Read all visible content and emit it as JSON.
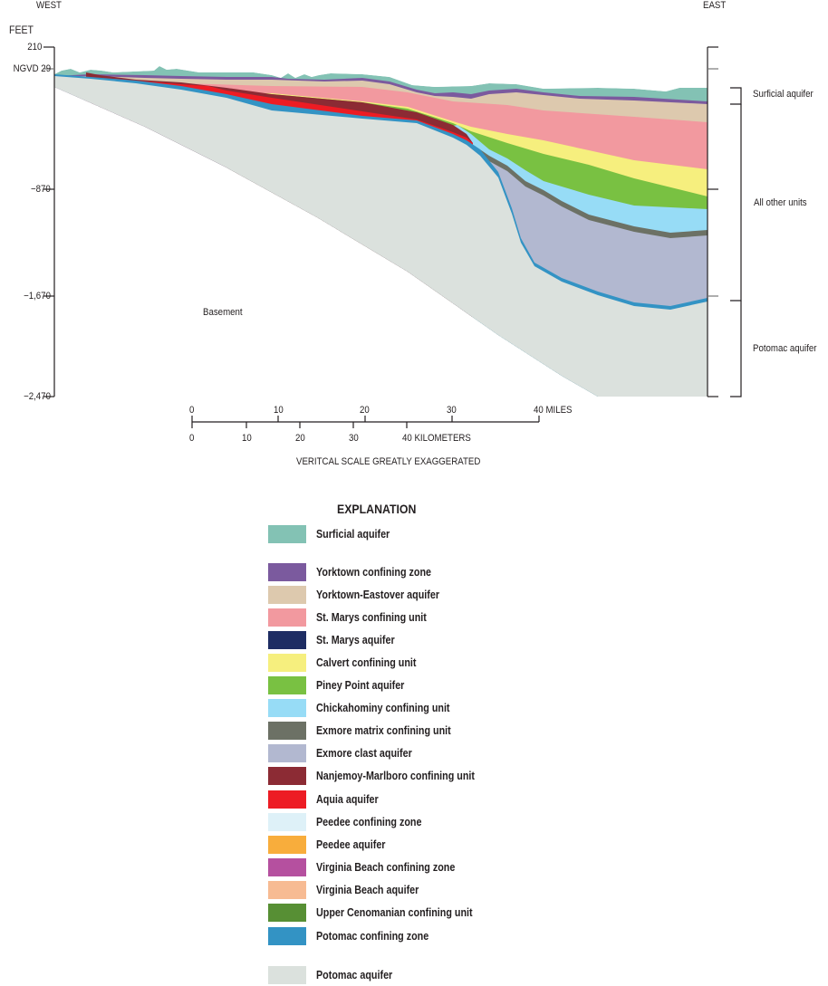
{
  "section": {
    "west_label": "WEST",
    "east_label": "EAST",
    "units_label": "FEET",
    "y_ticks": [
      "210",
      "NGVD 29",
      "−870",
      "−1,670",
      "−2,470"
    ],
    "basement_label": "Basement",
    "brackets": [
      "Surficial aquifer",
      "All other units",
      "Potomac aquifer"
    ]
  },
  "scale_bar": {
    "miles_ticks": [
      "0",
      "10",
      "20",
      "30",
      "40 MILES"
    ],
    "km_ticks": [
      "0",
      "10",
      "20",
      "30",
      "40 KILOMETERS"
    ],
    "note": "VERITCAL SCALE GREATLY EXAGGERATED"
  },
  "legend": {
    "title": "EXPLANATION",
    "items": [
      {
        "label": "Surficial aquifer",
        "color": "#83c2b4"
      },
      {
        "label": "Yorktown confining zone",
        "color": "#7b5a9e"
      },
      {
        "label": "Yorktown-Eastover aquifer",
        "color": "#ddc9ae"
      },
      {
        "label": "St. Marys confining unit",
        "color": "#f2999f"
      },
      {
        "label": "St. Marys aquifer",
        "color": "#1e2d63"
      },
      {
        "label": "Calvert confining unit",
        "color": "#f6ef7e"
      },
      {
        "label": "Piney Point aquifer",
        "color": "#79c142"
      },
      {
        "label": "Chickahominy confining unit",
        "color": "#97dcf6"
      },
      {
        "label": "Exmore matrix confining unit",
        "color": "#6c7165"
      },
      {
        "label": "Exmore clast aquifer",
        "color": "#b2b8d0"
      },
      {
        "label": "Nanjemoy-Marlboro confining unit",
        "color": "#8c2b34"
      },
      {
        "label": "Aquia aquifer",
        "color": "#ed1c24"
      },
      {
        "label": "Peedee confining zone",
        "color": "#def1f8"
      },
      {
        "label": "Peedee aquifer",
        "color": "#f8ad3c"
      },
      {
        "label": "Virginia Beach confining zone",
        "color": "#b5509f"
      },
      {
        "label": "Virginia Beach aquifer",
        "color": "#f7bb93"
      },
      {
        "label": "Upper Cenomanian confining unit",
        "color": "#578f34"
      },
      {
        "label": "Potomac confining zone",
        "color": "#3393c4"
      },
      {
        "label": "Potomac aquifer",
        "color": "#dbe1dd"
      }
    ]
  }
}
